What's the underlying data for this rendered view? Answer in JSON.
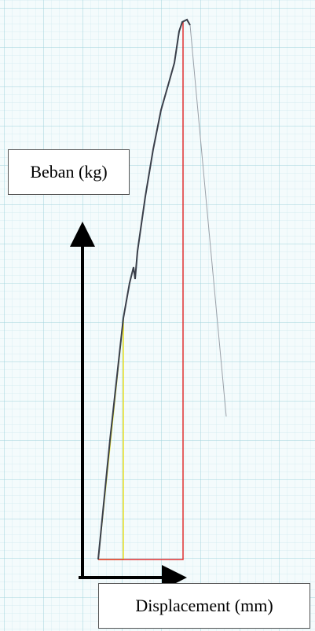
{
  "labels": {
    "y_axis": "Beban (kg)",
    "x_axis": "Displacement (mm)"
  }
}
